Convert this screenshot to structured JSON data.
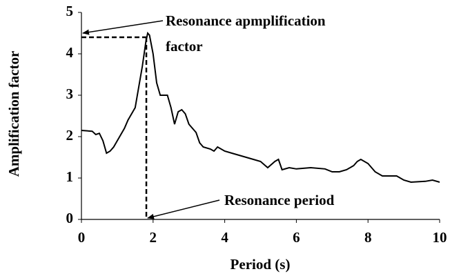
{
  "chart_data": {
    "type": "line",
    "xlabel": "Period (s)",
    "ylabel": "Amplification factor",
    "x": [
      0,
      0.3,
      0.4,
      0.5,
      0.6,
      0.7,
      0.8,
      0.9,
      1.0,
      1.1,
      1.2,
      1.3,
      1.4,
      1.5,
      1.6,
      1.7,
      1.8,
      1.85,
      1.9,
      2.0,
      2.1,
      2.2,
      2.4,
      2.5,
      2.6,
      2.7,
      2.8,
      2.9,
      3.0,
      3.1,
      3.2,
      3.3,
      3.4,
      3.6,
      3.7,
      3.8,
      4.0,
      4.2,
      4.4,
      4.6,
      4.8,
      5.0,
      5.2,
      5.4,
      5.5,
      5.6,
      5.8,
      6.0,
      6.4,
      6.8,
      7.0,
      7.2,
      7.4,
      7.6,
      7.7,
      7.8,
      8.0,
      8.2,
      8.4,
      8.6,
      8.8,
      9.0,
      9.2,
      9.6,
      9.8,
      10
    ],
    "series": [
      {
        "color": "#000000",
        "values": [
          2.15,
          2.13,
          2.05,
          2.08,
          1.9,
          1.6,
          1.65,
          1.75,
          1.9,
          2.05,
          2.2,
          2.4,
          2.55,
          2.7,
          3.2,
          3.7,
          4.3,
          4.5,
          4.45,
          4.0,
          3.3,
          3.0,
          3.0,
          2.7,
          2.3,
          2.6,
          2.65,
          2.55,
          2.3,
          2.2,
          2.1,
          1.85,
          1.75,
          1.7,
          1.65,
          1.75,
          1.65,
          1.6,
          1.55,
          1.5,
          1.45,
          1.4,
          1.25,
          1.4,
          1.45,
          1.2,
          1.25,
          1.22,
          1.25,
          1.22,
          1.15,
          1.15,
          1.2,
          1.3,
          1.4,
          1.45,
          1.35,
          1.15,
          1.05,
          1.05,
          1.05,
          0.95,
          0.9,
          0.92,
          0.95,
          0.9
        ]
      }
    ],
    "xlim": [
      0,
      10
    ],
    "xticks": [
      0,
      2,
      4,
      6,
      8,
      10
    ],
    "ylim": [
      0,
      5
    ],
    "yticks": [
      0,
      1,
      2,
      3,
      4,
      5
    ],
    "grid": false,
    "annotations": [
      {
        "lines": [
          "Resonance apmplification",
          "factor"
        ]
      },
      {
        "lines": [
          "Resonance period"
        ]
      }
    ]
  }
}
